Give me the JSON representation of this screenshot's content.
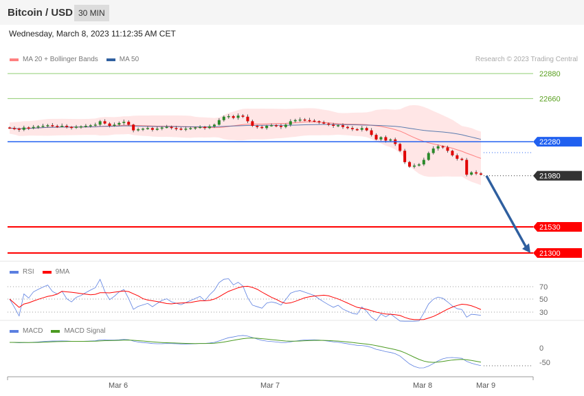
{
  "header": {
    "title": "Bitcoin / USD",
    "timeframe": "30 MIN"
  },
  "timestamp": "Wednesday, March 8, 2023 11:12:35 AM CET",
  "legend": {
    "ma20": "MA 20 + Bollinger Bands",
    "ma50": "MA 50",
    "credit": "Research © 2023 Trading Central"
  },
  "colors": {
    "ma20": "#ff8080",
    "ma50": "#3060a0",
    "band": "#ffe0e0",
    "resistance": "#8fcc70",
    "pivot": "#2060f0",
    "support": "#ff0000",
    "current": "#333333",
    "up": "#2a8a2a",
    "down": "#e00000",
    "arrow": "#2f5f9f",
    "rsi": "#5b7fe0",
    "rsi_ma": "#ff0000",
    "macd": "#5b7fe0",
    "macd_signal": "#4a9a20"
  },
  "levels": [
    {
      "value": 22880,
      "label": "22880",
      "type": "resistance"
    },
    {
      "value": 22660,
      "label": "22660",
      "type": "resistance"
    },
    {
      "value": 22280,
      "label": "22280",
      "type": "pivot"
    },
    {
      "value": 21980,
      "label": "21980",
      "type": "current"
    },
    {
      "value": 21530,
      "label": "21530",
      "type": "support"
    },
    {
      "value": 21300,
      "label": "21300",
      "type": "support"
    }
  ],
  "rsi_panel": {
    "legend_rsi": "RSI",
    "legend_ma": "9MA",
    "ticks": [
      "70",
      "50",
      "30"
    ]
  },
  "macd_panel": {
    "legend_macd": "MACD",
    "legend_signal": "MACD Signal",
    "ticks": [
      "0",
      "-50"
    ]
  },
  "x_axis": {
    "labels": [
      "Mar 6",
      "Mar 7",
      "Mar 8",
      "Mar 9"
    ]
  },
  "chart_data": {
    "type": "candlestick",
    "y_range": [
      21300,
      22880
    ],
    "closes": [
      22400,
      22395,
      22385,
      22405,
      22400,
      22410,
      22415,
      22420,
      22425,
      22418,
      22415,
      22420,
      22410,
      22405,
      22412,
      22415,
      22420,
      22425,
      22430,
      22460,
      22440,
      22420,
      22430,
      22445,
      22455,
      22430,
      22380,
      22390,
      22395,
      22400,
      22385,
      22395,
      22405,
      22410,
      22400,
      22395,
      22390,
      22395,
      22400,
      22405,
      22410,
      22400,
      22415,
      22430,
      22470,
      22500,
      22505,
      22490,
      22510,
      22500,
      22460,
      22420,
      22410,
      22400,
      22420,
      22425,
      22420,
      22410,
      22430,
      22460,
      22470,
      22475,
      22470,
      22465,
      22460,
      22450,
      22440,
      22430,
      22420,
      22425,
      22410,
      22400,
      22390,
      22385,
      22400,
      22380,
      22340,
      22300,
      22320,
      22290,
      22300,
      22260,
      22200,
      22100,
      22060,
      22070,
      22080,
      22120,
      22180,
      22220,
      22240,
      22230,
      22200,
      22160,
      22130,
      22120,
      21990,
      22010,
      22000,
      21990
    ],
    "forecast": {
      "from": 21980,
      "to": 21300
    }
  }
}
